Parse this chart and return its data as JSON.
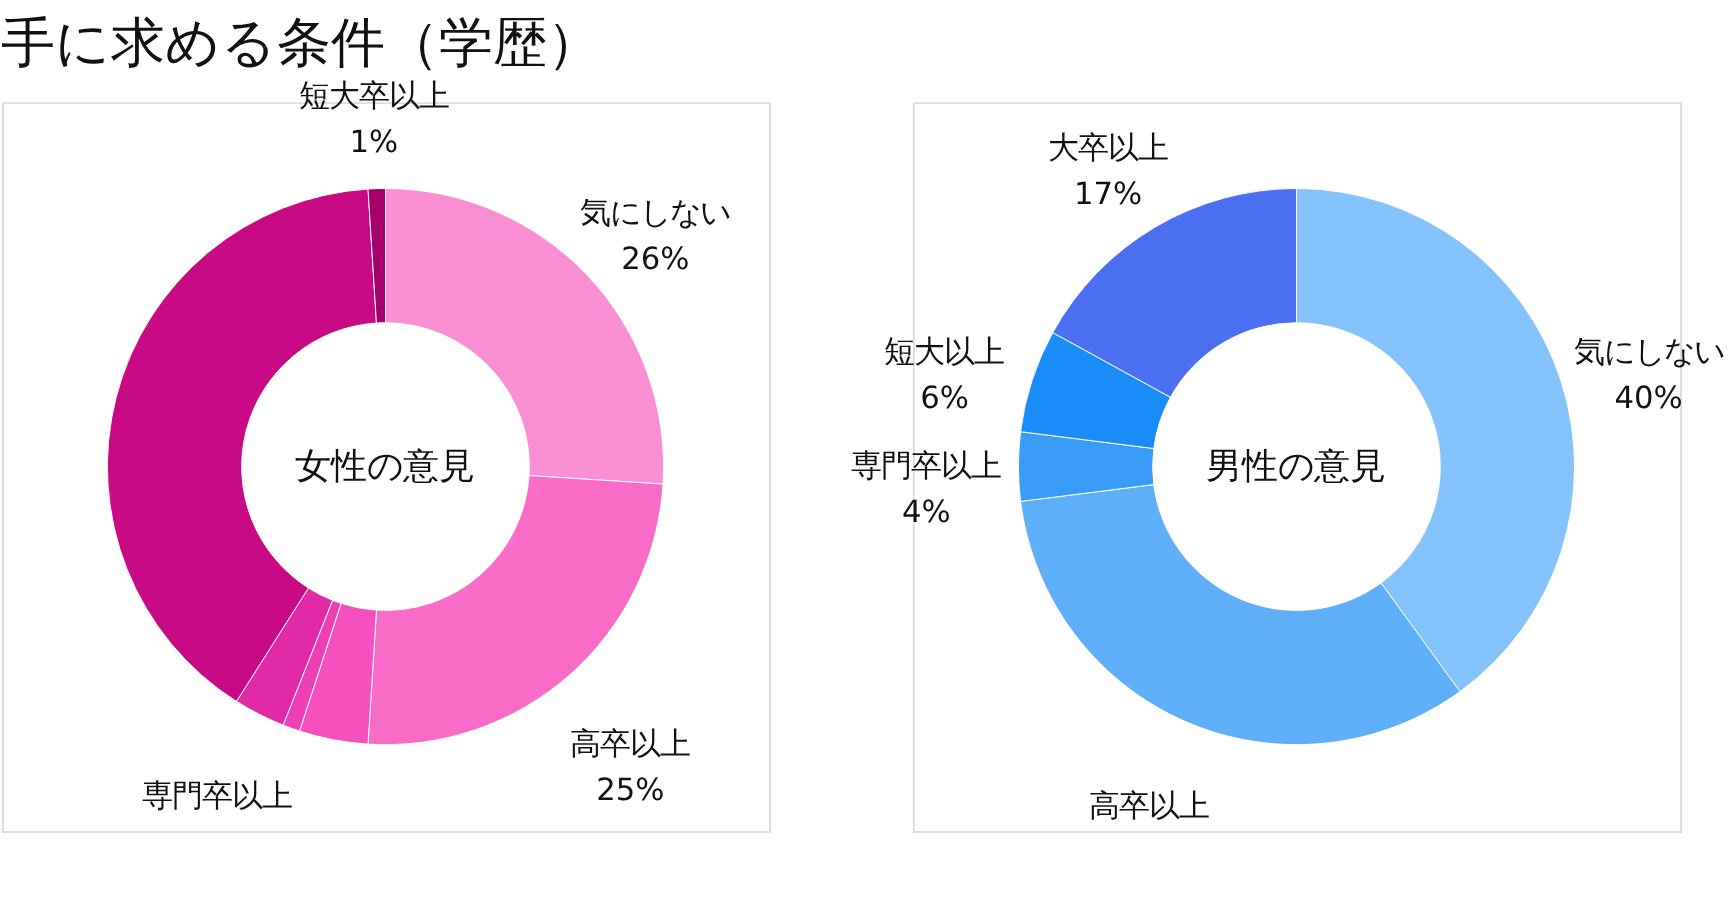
{
  "chart_data": [
    {
      "type": "donut",
      "title": "女性の意見",
      "annotations": [
        "手に求める条件（学歴）"
      ],
      "categories": [
        "気にしない",
        "高卒以上",
        null,
        null,
        "専門卒以上",
        null,
        "短大卒以上"
      ],
      "values": [
        26,
        25,
        4,
        1,
        3,
        40,
        1
      ],
      "value_labels": [
        "26%",
        "25%",
        null,
        null,
        null,
        null,
        "1%"
      ],
      "colors": [
        "#fb8fd6",
        "#f86cc8",
        "#f550be",
        "#ee3fb4",
        "#e12ba6",
        "#c80a85",
        "#a5006c"
      ],
      "legend": false
    },
    {
      "type": "donut",
      "title": "男性の意見",
      "categories": [
        "気にしない",
        "高卒以上",
        "専門卒以上",
        "短大以上",
        "大卒以上"
      ],
      "values": [
        40,
        33,
        4,
        6,
        17
      ],
      "value_labels": [
        "40%",
        null,
        "4%",
        "6%",
        "17%"
      ],
      "colors": [
        "#84c3fb",
        "#5eaff8",
        "#3a9cf7",
        "#1a8cf8",
        "#4a6ff0"
      ],
      "legend": false
    }
  ]
}
